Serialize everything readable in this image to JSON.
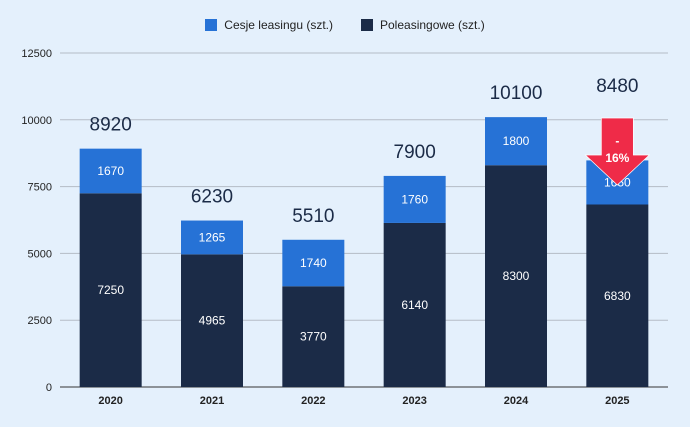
{
  "chart_data": {
    "type": "bar",
    "stacked": true,
    "categories": [
      "2020",
      "2021",
      "2022",
      "2023",
      "2024",
      "2025"
    ],
    "series": [
      {
        "name": "Poleasingowe (szt.)",
        "color": "#1b2b47",
        "values": [
          7250,
          4965,
          3770,
          6140,
          8300,
          6830
        ]
      },
      {
        "name": "Cesje leasingu (szt.)",
        "color": "#2672d6",
        "values": [
          1670,
          1265,
          1740,
          1760,
          1800,
          1650
        ]
      }
    ],
    "totals": [
      8920,
      6230,
      5510,
      7900,
      10100,
      8480
    ],
    "yticks": [
      0,
      2500,
      5000,
      7500,
      10000,
      12500
    ],
    "ylim": [
      0,
      12500
    ],
    "grid": true,
    "legend": "top",
    "annotation": {
      "text_line1": "-",
      "text_line2": "16%",
      "category": "2025",
      "color": "#ef2b48",
      "icon": "down-arrow"
    }
  }
}
